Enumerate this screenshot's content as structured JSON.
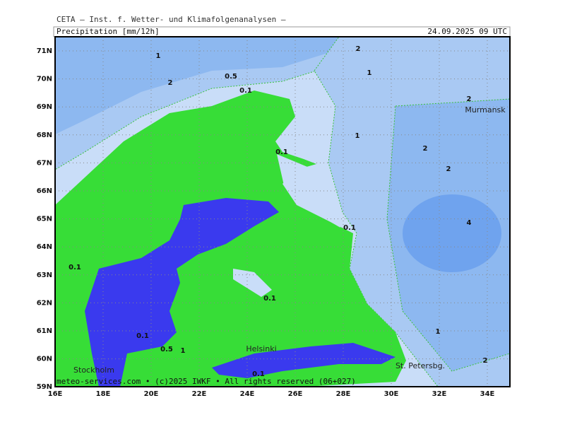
{
  "header": {
    "source": "CETA — Inst. f. Wetter- und Klimafolgenanalysen —",
    "title": "Precipitation [mm/12h]",
    "valid_time": "24.09.2025 09 UTC"
  },
  "map": {
    "lon_labels": [
      "16E",
      "18E",
      "20E",
      "22E",
      "24E",
      "26E",
      "28E",
      "30E",
      "32E",
      "34E"
    ],
    "lat_labels": [
      "71N",
      "70N",
      "69N",
      "68N",
      "67N",
      "66N",
      "65N",
      "64N",
      "63N",
      "62N",
      "61N",
      "60N",
      "59N"
    ],
    "contour_labels": [
      "1",
      "2",
      "0.5",
      "0.1",
      "2",
      "1",
      "2",
      "1",
      "2",
      "0.1",
      "2",
      "4",
      "0.1",
      "0.1",
      "0.1",
      "1",
      "0.1",
      "0.5",
      "1",
      "2",
      "0.1"
    ],
    "cities": [
      "Murmansk",
      "Helsinki",
      "St. Petersbg.",
      "Stockholm"
    ]
  },
  "footer": "meteo-services.com • (c)2025 IWKF • All rights reserved (06+027)"
}
